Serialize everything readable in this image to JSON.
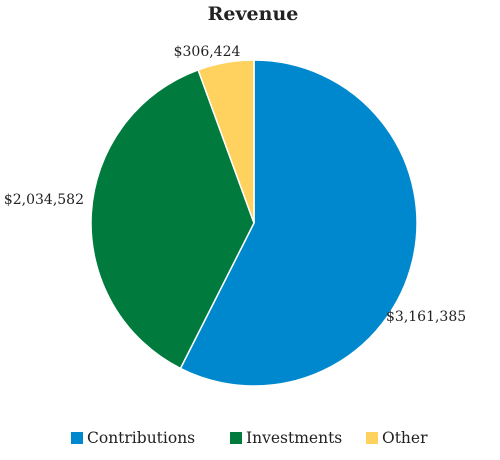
{
  "chart_data": {
    "type": "pie",
    "title": "Revenue",
    "slices": [
      {
        "name": "Contributions",
        "value": 3161385,
        "label": "$3,161,385",
        "color": "#0088CE"
      },
      {
        "name": "Investments",
        "value": 2034582,
        "label": "$2,034,582",
        "color": "#007A3D"
      },
      {
        "name": "Other",
        "value": 306424,
        "label": "$306,424",
        "color": "#FFD15F"
      }
    ],
    "start_angle": "top (12 o'clock)",
    "direction": "clockwise",
    "legend_position": "bottom"
  }
}
